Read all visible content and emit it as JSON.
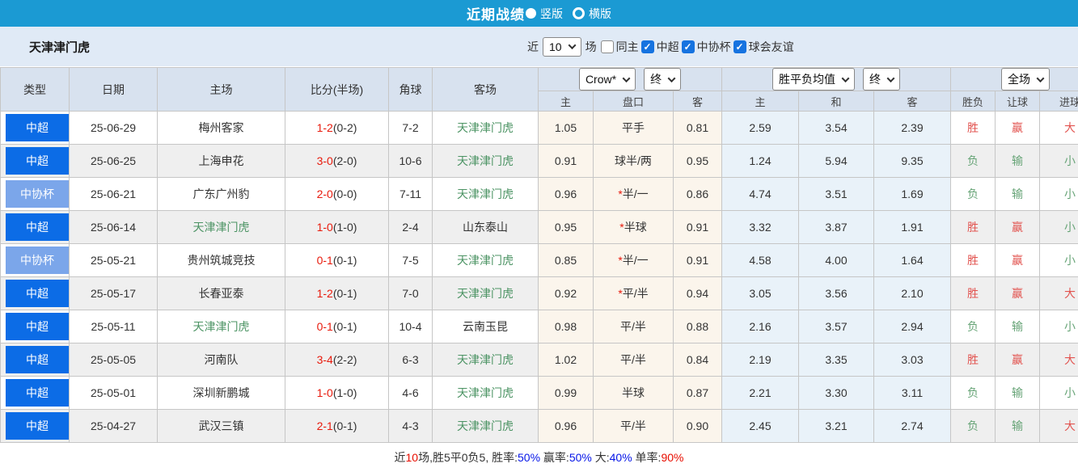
{
  "colors": {
    "title_bar": "#1b9ad3",
    "league_csl": "#0c6ce6",
    "league_cup": "#7ba6ea",
    "win_red": "#e2534f",
    "lose_green": "#67a477",
    "team_green": "#4b9363",
    "score_red": "#e81a0c",
    "checkbox_blue": "#1673e0"
  },
  "title_bar": {
    "title": "近期战绩",
    "radio_vertical": "竖版",
    "radio_horizontal": "横版"
  },
  "filter_bar": {
    "team": "天津津门虎",
    "near_label": "近",
    "match_count": "10",
    "matches_label": "场",
    "checkboxes": [
      {
        "label": "同主",
        "checked": false
      },
      {
        "label": "中超",
        "checked": true
      },
      {
        "label": "中协杯",
        "checked": true
      },
      {
        "label": "球会友谊",
        "checked": true
      }
    ]
  },
  "table": {
    "headers_left": [
      "类型",
      "日期",
      "主场",
      "比分(半场)",
      "角球",
      "客场"
    ],
    "selects": {
      "bookmaker": "Crow*",
      "handicap_time": "终",
      "odds_type": "胜平负均值",
      "odds_time": "终",
      "scope": "全场"
    },
    "subheaders": [
      "主",
      "盘口",
      "客",
      "主",
      "和",
      "客",
      "胜负",
      "让球",
      "进球"
    ],
    "rows": [
      {
        "type": "中超",
        "league": "csl",
        "date": "25-06-29",
        "home": "梅州客家",
        "home_self": false,
        "score": "1-2",
        "half": "(0-2)",
        "corner": "7-2",
        "away": "天津津门虎",
        "away_self": true,
        "h_home": "1.05",
        "h_star": false,
        "h_line": "平手",
        "h_away": "0.81",
        "o_home": "2.59",
        "o_draw": "3.54",
        "o_away": "2.39",
        "r_wdl": "胜",
        "r_wdl_win": true,
        "r_hcp": "赢",
        "r_hcp_win": true,
        "r_goal": "大",
        "r_goal_big": true
      },
      {
        "type": "中超",
        "league": "csl",
        "date": "25-06-25",
        "home": "上海申花",
        "home_self": false,
        "score": "3-0",
        "half": "(2-0)",
        "corner": "10-6",
        "away": "天津津门虎",
        "away_self": true,
        "h_home": "0.91",
        "h_star": false,
        "h_line": "球半/两",
        "h_away": "0.95",
        "o_home": "1.24",
        "o_draw": "5.94",
        "o_away": "9.35",
        "r_wdl": "负",
        "r_wdl_win": false,
        "r_hcp": "输",
        "r_hcp_win": false,
        "r_goal": "小",
        "r_goal_big": false
      },
      {
        "type": "中协杯",
        "league": "cup",
        "date": "25-06-21",
        "home": "广东广州豹",
        "home_self": false,
        "score": "2-0",
        "half": "(0-0)",
        "corner": "7-11",
        "away": "天津津门虎",
        "away_self": true,
        "h_home": "0.96",
        "h_star": true,
        "h_line": "半/一",
        "h_away": "0.86",
        "o_home": "4.74",
        "o_draw": "3.51",
        "o_away": "1.69",
        "r_wdl": "负",
        "r_wdl_win": false,
        "r_hcp": "输",
        "r_hcp_win": false,
        "r_goal": "小",
        "r_goal_big": false
      },
      {
        "type": "中超",
        "league": "csl",
        "date": "25-06-14",
        "home": "天津津门虎",
        "home_self": true,
        "score": "1-0",
        "half": "(1-0)",
        "corner": "2-4",
        "away": "山东泰山",
        "away_self": false,
        "h_home": "0.95",
        "h_star": true,
        "h_line": "半球",
        "h_away": "0.91",
        "o_home": "3.32",
        "o_draw": "3.87",
        "o_away": "1.91",
        "r_wdl": "胜",
        "r_wdl_win": true,
        "r_hcp": "赢",
        "r_hcp_win": true,
        "r_goal": "小",
        "r_goal_big": false
      },
      {
        "type": "中协杯",
        "league": "cup",
        "date": "25-05-21",
        "home": "贵州筑城竞技",
        "home_self": false,
        "score": "0-1",
        "half": "(0-1)",
        "corner": "7-5",
        "away": "天津津门虎",
        "away_self": true,
        "h_home": "0.85",
        "h_star": true,
        "h_line": "半/一",
        "h_away": "0.91",
        "o_home": "4.58",
        "o_draw": "4.00",
        "o_away": "1.64",
        "r_wdl": "胜",
        "r_wdl_win": true,
        "r_hcp": "赢",
        "r_hcp_win": true,
        "r_goal": "小",
        "r_goal_big": false
      },
      {
        "type": "中超",
        "league": "csl",
        "date": "25-05-17",
        "home": "长春亚泰",
        "home_self": false,
        "score": "1-2",
        "half": "(0-1)",
        "corner": "7-0",
        "away": "天津津门虎",
        "away_self": true,
        "h_home": "0.92",
        "h_star": true,
        "h_line": "平/半",
        "h_away": "0.94",
        "o_home": "3.05",
        "o_draw": "3.56",
        "o_away": "2.10",
        "r_wdl": "胜",
        "r_wdl_win": true,
        "r_hcp": "赢",
        "r_hcp_win": true,
        "r_goal": "大",
        "r_goal_big": true
      },
      {
        "type": "中超",
        "league": "csl",
        "date": "25-05-11",
        "home": "天津津门虎",
        "home_self": true,
        "score": "0-1",
        "half": "(0-1)",
        "corner": "10-4",
        "away": "云南玉昆",
        "away_self": false,
        "h_home": "0.98",
        "h_star": false,
        "h_line": "平/半",
        "h_away": "0.88",
        "o_home": "2.16",
        "o_draw": "3.57",
        "o_away": "2.94",
        "r_wdl": "负",
        "r_wdl_win": false,
        "r_hcp": "输",
        "r_hcp_win": false,
        "r_goal": "小",
        "r_goal_big": false
      },
      {
        "type": "中超",
        "league": "csl",
        "date": "25-05-05",
        "home": "河南队",
        "home_self": false,
        "score": "3-4",
        "half": "(2-2)",
        "corner": "6-3",
        "away": "天津津门虎",
        "away_self": true,
        "h_home": "1.02",
        "h_star": false,
        "h_line": "平/半",
        "h_away": "0.84",
        "o_home": "2.19",
        "o_draw": "3.35",
        "o_away": "3.03",
        "r_wdl": "胜",
        "r_wdl_win": true,
        "r_hcp": "赢",
        "r_hcp_win": true,
        "r_goal": "大",
        "r_goal_big": true
      },
      {
        "type": "中超",
        "league": "csl",
        "date": "25-05-01",
        "home": "深圳新鹏城",
        "home_self": false,
        "score": "1-0",
        "half": "(1-0)",
        "corner": "4-6",
        "away": "天津津门虎",
        "away_self": true,
        "h_home": "0.99",
        "h_star": false,
        "h_line": "半球",
        "h_away": "0.87",
        "o_home": "2.21",
        "o_draw": "3.30",
        "o_away": "3.11",
        "r_wdl": "负",
        "r_wdl_win": false,
        "r_hcp": "输",
        "r_hcp_win": false,
        "r_goal": "小",
        "r_goal_big": false
      },
      {
        "type": "中超",
        "league": "csl",
        "date": "25-04-27",
        "home": "武汉三镇",
        "home_self": false,
        "score": "2-1",
        "half": "(0-1)",
        "corner": "4-3",
        "away": "天津津门虎",
        "away_self": true,
        "h_home": "0.96",
        "h_star": false,
        "h_line": "平/半",
        "h_away": "0.90",
        "o_home": "2.45",
        "o_draw": "3.21",
        "o_away": "2.74",
        "r_wdl": "负",
        "r_wdl_win": false,
        "r_hcp": "输",
        "r_hcp_win": false,
        "r_goal": "大",
        "r_goal_big": true
      }
    ]
  },
  "footer": {
    "segments": [
      {
        "t": "近",
        "c": "dark"
      },
      {
        "t": "10",
        "c": "red"
      },
      {
        "t": "场,胜5平0负5, 胜率:",
        "c": "dark"
      },
      {
        "t": "50%",
        "c": "blue"
      },
      {
        "t": " 赢率:",
        "c": "dark"
      },
      {
        "t": "50%",
        "c": "blue"
      },
      {
        "t": " 大:",
        "c": "dark"
      },
      {
        "t": "40%",
        "c": "blue"
      },
      {
        "t": " 单率:",
        "c": "dark"
      },
      {
        "t": "90%",
        "c": "red"
      }
    ]
  }
}
